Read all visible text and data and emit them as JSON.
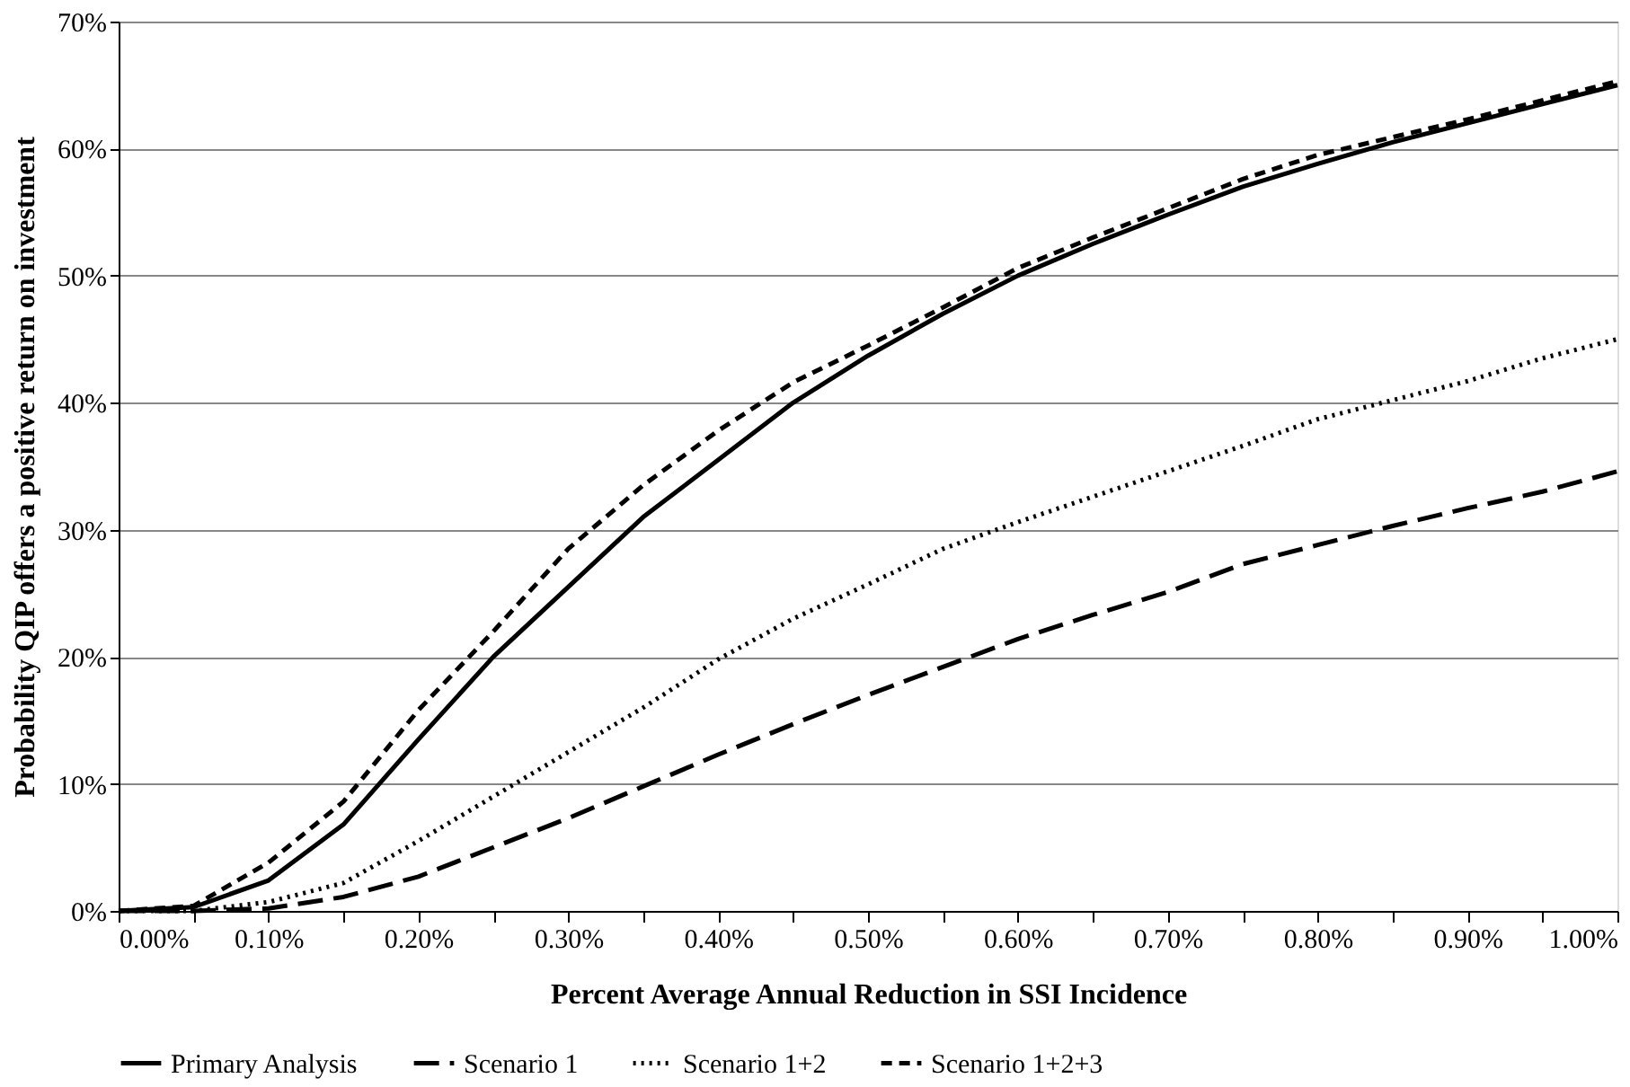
{
  "chart_data": {
    "type": "line",
    "xlabel": "Percent Average Annual Reduction in SSI Incidence",
    "ylabel": "Probability QIP offers a positive return on investment",
    "x": [
      0,
      0.05,
      0.1,
      0.15,
      0.2,
      0.25,
      0.3,
      0.35,
      0.4,
      0.45,
      0.5,
      0.55,
      0.6,
      0.65,
      0.7,
      0.75,
      0.8,
      0.85,
      0.9,
      0.95,
      1.0
    ],
    "series": [
      {
        "name": "Primary Analysis",
        "color": "#000000",
        "line_style": "solid",
        "values": [
          0,
          0.3,
          2.4,
          6.8,
          13.5,
          20,
          25.5,
          31,
          35.5,
          40,
          43.7,
          47,
          50,
          52.5,
          54.8,
          57,
          58.8,
          60.5,
          62,
          63.5,
          65
        ]
      },
      {
        "name": "Scenario 1",
        "color": "#000000",
        "line_style": "dashed",
        "values": [
          0,
          0,
          0.2,
          1.1,
          2.7,
          5,
          7.3,
          9.8,
          12.3,
          14.7,
          17,
          19.2,
          21.4,
          23.3,
          25.1,
          27.3,
          28.8,
          30.3,
          31.7,
          33,
          34.6
        ]
      },
      {
        "name": "Scenario 1+2",
        "color": "#000000",
        "line_style": "dotted",
        "values": [
          0,
          0,
          0.7,
          2.2,
          5.5,
          9,
          12.5,
          16,
          19.8,
          23,
          25.7,
          28.5,
          30.6,
          32.6,
          34.6,
          36.6,
          38.7,
          40.2,
          41.7,
          43.5,
          45
        ]
      },
      {
        "name": "Scenario 1+2+3",
        "color": "#000000",
        "line_style": "dashed",
        "values": [
          0,
          0.4,
          3.8,
          8.6,
          15.8,
          22,
          28.5,
          33.5,
          37.8,
          41.6,
          44.5,
          47.5,
          50.6,
          53,
          55.3,
          57.6,
          59.5,
          60.9,
          62.3,
          63.8,
          65.3
        ]
      }
    ],
    "xlim": [
      0,
      1.0
    ],
    "xticks": [
      {
        "value": 0,
        "label": "0.00%"
      },
      {
        "value": 0.05,
        "label": null
      },
      {
        "value": 0.1,
        "label": "0.10%"
      },
      {
        "value": 0.15,
        "label": null
      },
      {
        "value": 0.2,
        "label": "0.20%"
      },
      {
        "value": 0.25,
        "label": null
      },
      {
        "value": 0.3,
        "label": "0.30%"
      },
      {
        "value": 0.35,
        "label": null
      },
      {
        "value": 0.4,
        "label": "0.40%"
      },
      {
        "value": 0.45,
        "label": null
      },
      {
        "value": 0.5,
        "label": "0.50%"
      },
      {
        "value": 0.55,
        "label": null
      },
      {
        "value": 0.6,
        "label": "0.60%"
      },
      {
        "value": 0.65,
        "label": null
      },
      {
        "value": 0.7,
        "label": "0.70%"
      },
      {
        "value": 0.75,
        "label": null
      },
      {
        "value": 0.8,
        "label": "0.80%"
      },
      {
        "value": 0.85,
        "label": null
      },
      {
        "value": 0.9,
        "label": "0.90%"
      },
      {
        "value": 0.95,
        "label": null
      },
      {
        "value": 1.0,
        "label": "1.00%"
      }
    ],
    "ylim": [
      0,
      70
    ],
    "yticks": [
      {
        "value": 0,
        "label": "0%"
      },
      {
        "value": 10,
        "label": "10%"
      },
      {
        "value": 20,
        "label": "20%"
      },
      {
        "value": 30,
        "label": "30%"
      },
      {
        "value": 40,
        "label": "40%"
      },
      {
        "value": 50,
        "label": "50%"
      },
      {
        "value": 60,
        "label": "60%"
      },
      {
        "value": 70,
        "label": "70%"
      }
    ],
    "grid": "y",
    "legend": "bottom",
    "marker": "none"
  }
}
